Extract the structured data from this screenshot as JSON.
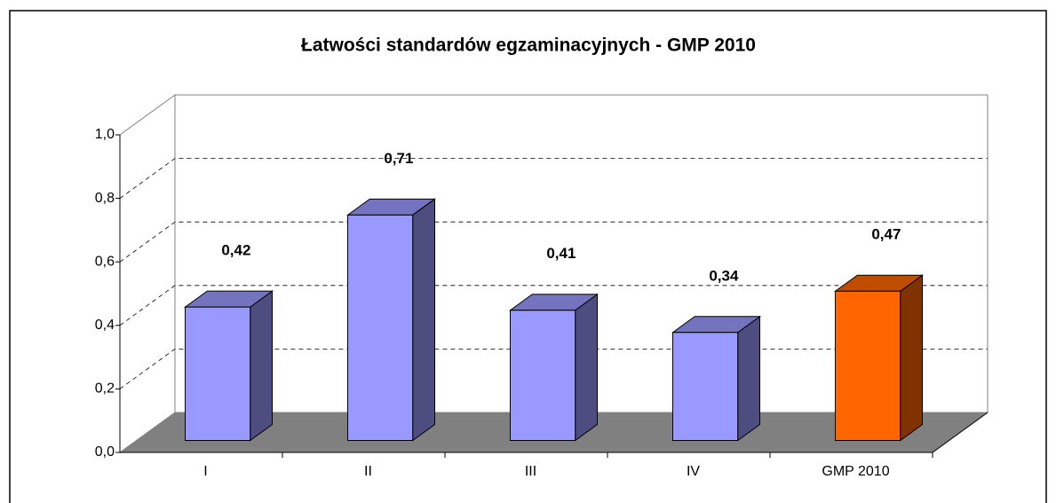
{
  "chart_data": {
    "type": "bar3d",
    "title": "Łatwości standardów egzaminacyjnych - GMP 2010",
    "categories": [
      "I",
      "II",
      "III",
      "IV",
      "GMP 2010"
    ],
    "values": [
      0.42,
      0.71,
      0.41,
      0.34,
      0.47
    ],
    "value_labels": [
      "0,42",
      "0,71",
      "0,41",
      "0,34",
      "0,47"
    ],
    "colors": [
      "#9999ff",
      "#9999ff",
      "#9999ff",
      "#9999ff",
      "#ff6600"
    ],
    "ylim": [
      0,
      1
    ],
    "yticks": [
      {
        "value": 0,
        "label": "0,0"
      },
      {
        "value": 0.2,
        "label": "0,2"
      },
      {
        "value": 0.4,
        "label": "0,4"
      },
      {
        "value": 0.6,
        "label": "0,6"
      },
      {
        "value": 0.8,
        "label": "0,8"
      },
      {
        "value": 1,
        "label": "1,0"
      }
    ],
    "grid": true
  }
}
